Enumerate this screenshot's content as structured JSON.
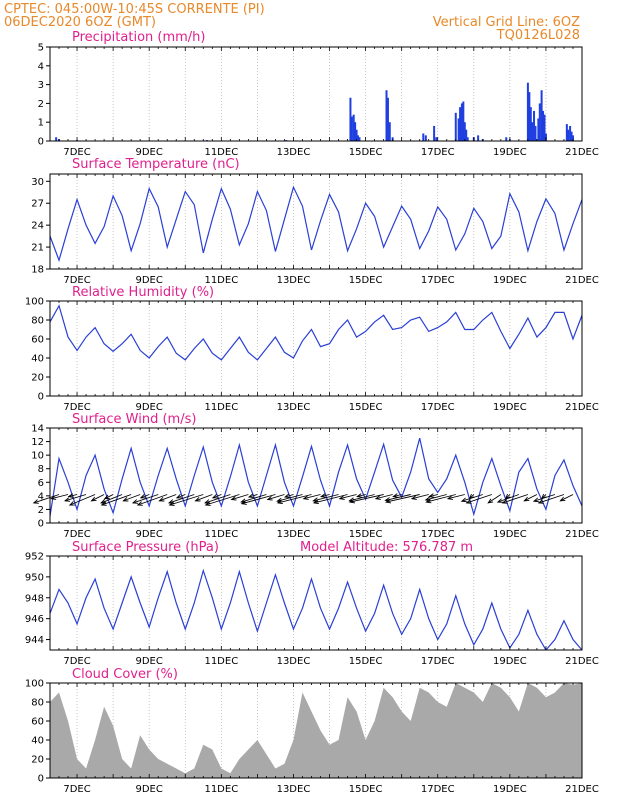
{
  "header": {
    "line1_left": "CPTEC:  045:00W-10:45S  CORRENTE (PI)",
    "line2_left": "06DEC2020 6OZ (GMT)",
    "line1_right": "Vertical Grid Line: 6OZ",
    "line2_right": "TQ0126L028"
  },
  "colors": {
    "header": "#e8892a",
    "title": "#e0208c",
    "line": "#2a3fd6",
    "bar": "#1f3fe0",
    "cloud": "#a9a9a9",
    "grid": "#b0b0b0"
  },
  "x_axis": {
    "labels": [
      "7DEC",
      "9DEC",
      "11DEC",
      "13DEC",
      "15DEC",
      "17DEC",
      "19DEC",
      "21DEC"
    ],
    "day_start": 6.25,
    "day_end": 21.0,
    "label_days": [
      7,
      9,
      11,
      13,
      15,
      17,
      19,
      21
    ]
  },
  "chart_data": [
    {
      "type": "bar",
      "title": "Precipitation (mm/h)",
      "ylim": [
        0,
        5
      ],
      "yticks": [
        0,
        1,
        2,
        3,
        4,
        5
      ],
      "x_days": [
        6.42,
        6.5,
        7.0,
        10.6,
        12.8,
        14.58,
        14.62,
        14.67,
        14.71,
        14.75,
        14.79,
        14.83,
        15.58,
        15.62,
        15.67,
        15.75,
        16.6,
        16.67,
        16.9,
        16.96,
        17.5,
        17.58,
        17.62,
        17.67,
        17.71,
        17.75,
        17.79,
        17.83,
        18.0,
        18.12,
        18.25,
        18.9,
        19.0,
        19.5,
        19.54,
        19.58,
        19.62,
        19.67,
        19.71,
        19.79,
        19.83,
        19.88,
        19.92,
        19.96,
        20.0,
        20.58,
        20.62,
        20.67,
        20.71,
        20.75
      ],
      "values": [
        0.2,
        0.1,
        0.05,
        0.05,
        0.05,
        2.3,
        1.3,
        1.4,
        1.0,
        0.6,
        0.3,
        0.2,
        2.7,
        2.3,
        1.0,
        0.2,
        0.4,
        0.3,
        0.8,
        0.2,
        1.5,
        1.2,
        1.8,
        2.0,
        2.1,
        1.0,
        0.6,
        0.2,
        0.2,
        0.3,
        0.1,
        0.2,
        0.1,
        3.1,
        2.6,
        1.8,
        1.0,
        1.6,
        0.8,
        1.2,
        2.0,
        2.7,
        1.6,
        1.4,
        0.4,
        0.9,
        0.6,
        0.8,
        0.5,
        0.3
      ]
    },
    {
      "type": "line",
      "title": "Surface Temperature (nC)",
      "ylim": [
        18,
        31
      ],
      "yticks": [
        18,
        21,
        24,
        27,
        30
      ],
      "series": [
        {
          "x": [
            6.25,
            6.5,
            6.75,
            7.0,
            7.25,
            7.5,
            7.75,
            8.0,
            8.25,
            8.5,
            8.75,
            9.0,
            9.25,
            9.5,
            9.75,
            10.0,
            10.25,
            10.5,
            10.75,
            11.0,
            11.25,
            11.5,
            11.75,
            12.0,
            12.25,
            12.5,
            12.75,
            13.0,
            13.25,
            13.5,
            13.75,
            14.0,
            14.25,
            14.5,
            14.75,
            15.0,
            15.25,
            15.5,
            15.75,
            16.0,
            16.25,
            16.5,
            16.75,
            17.0,
            17.25,
            17.5,
            17.75,
            18.0,
            18.25,
            18.5,
            18.75,
            19.0,
            19.25,
            19.5,
            19.75,
            20.0,
            20.25,
            20.5,
            20.75,
            21.0
          ],
          "values": [
            22.5,
            19.2,
            23.5,
            27.5,
            24.0,
            21.5,
            23.8,
            28.0,
            25.3,
            20.5,
            24.2,
            29.0,
            26.5,
            21.0,
            24.8,
            28.6,
            26.8,
            20.2,
            24.8,
            29.0,
            26.2,
            21.3,
            24.2,
            28.6,
            26.0,
            20.4,
            24.8,
            29.2,
            26.6,
            20.6,
            24.6,
            28.2,
            25.8,
            20.5,
            23.5,
            27.0,
            25.2,
            21.0,
            23.8,
            26.6,
            24.8,
            20.8,
            23.2,
            26.5,
            24.8,
            20.6,
            22.8,
            26.3,
            24.5,
            20.8,
            22.5,
            28.3,
            25.8,
            20.5,
            24.5,
            27.6,
            25.6,
            20.6,
            24.2,
            27.5
          ]
        }
      ]
    },
    {
      "type": "line",
      "title": "Relative Humidity (%)",
      "ylim": [
        0,
        100
      ],
      "yticks": [
        0,
        20,
        40,
        60,
        80,
        100
      ],
      "series": [
        {
          "x": [
            6.25,
            6.5,
            6.75,
            7.0,
            7.25,
            7.5,
            7.75,
            8.0,
            8.25,
            8.5,
            8.75,
            9.0,
            9.25,
            9.5,
            9.75,
            10.0,
            10.25,
            10.5,
            10.75,
            11.0,
            11.25,
            11.5,
            11.75,
            12.0,
            12.25,
            12.5,
            12.75,
            13.0,
            13.25,
            13.5,
            13.75,
            14.0,
            14.25,
            14.5,
            14.75,
            15.0,
            15.25,
            15.5,
            15.75,
            16.0,
            16.25,
            16.5,
            16.75,
            17.0,
            17.25,
            17.5,
            17.75,
            18.0,
            18.25,
            18.5,
            18.75,
            19.0,
            19.25,
            19.5,
            19.75,
            20.0,
            20.25,
            20.5,
            20.75,
            21.0
          ],
          "values": [
            78,
            95,
            62,
            48,
            62,
            72,
            55,
            47,
            55,
            65,
            48,
            40,
            52,
            62,
            45,
            38,
            50,
            60,
            45,
            38,
            50,
            62,
            46,
            38,
            50,
            62,
            46,
            40,
            58,
            70,
            52,
            55,
            70,
            80,
            62,
            68,
            78,
            85,
            70,
            72,
            80,
            83,
            68,
            72,
            78,
            88,
            70,
            70,
            80,
            88,
            68,
            50,
            65,
            82,
            62,
            72,
            88,
            88,
            60,
            85
          ]
        }
      ]
    },
    {
      "type": "line",
      "title": "Surface Wind (m/s)",
      "ylim": [
        0,
        14
      ],
      "yticks": [
        0,
        2,
        4,
        6,
        8,
        10,
        12,
        14
      ],
      "series": [
        {
          "x": [
            6.25,
            6.5,
            6.75,
            7.0,
            7.25,
            7.5,
            7.75,
            8.0,
            8.25,
            8.5,
            8.75,
            9.0,
            9.25,
            9.5,
            9.75,
            10.0,
            10.25,
            10.5,
            10.75,
            11.0,
            11.25,
            11.5,
            11.75,
            12.0,
            12.25,
            12.5,
            12.75,
            13.0,
            13.25,
            13.5,
            13.75,
            14.0,
            14.25,
            14.5,
            14.75,
            15.0,
            15.25,
            15.5,
            15.75,
            16.0,
            16.25,
            16.5,
            16.75,
            17.0,
            17.25,
            17.5,
            17.75,
            18.0,
            18.25,
            18.5,
            18.75,
            19.0,
            19.25,
            19.5,
            19.75,
            20.0,
            20.25,
            20.5,
            20.75,
            21.0
          ],
          "values": [
            1.0,
            9.5,
            6.0,
            2.0,
            7.0,
            10.0,
            5.0,
            1.5,
            6.5,
            11.0,
            6.0,
            2.5,
            7.0,
            11.0,
            6.5,
            2.5,
            7.0,
            11.2,
            6.0,
            2.5,
            6.8,
            11.5,
            6.0,
            2.5,
            7.0,
            11.5,
            6.0,
            2.5,
            6.8,
            11.3,
            6.3,
            2.5,
            7.5,
            11.5,
            6.5,
            3.5,
            7.5,
            11.6,
            6.3,
            3.8,
            7.5,
            12.5,
            6.5,
            4.5,
            6.5,
            10.0,
            6.0,
            1.3,
            6.0,
            9.5,
            5.5,
            1.8,
            7.5,
            9.5,
            5.0,
            2.0,
            7.0,
            9.3,
            5.5,
            2.5
          ]
        }
      ],
      "wind_vectors": {
        "x": [
          6.5,
          6.75,
          7.0,
          7.25,
          7.5,
          7.75,
          8.0,
          8.25,
          8.5,
          8.75,
          9.0,
          9.25,
          9.5,
          9.75,
          10.0,
          10.25,
          10.5,
          10.75,
          11.0,
          11.25,
          11.5,
          11.75,
          12.0,
          12.25,
          12.5,
          12.75,
          13.0,
          13.25,
          13.5,
          13.75,
          14.0,
          14.25,
          14.5,
          14.75,
          15.0,
          15.25,
          15.5,
          15.75,
          16.0,
          16.25,
          16.5,
          16.75,
          17.0,
          17.25,
          17.5,
          17.75,
          18.0,
          18.25,
          18.5,
          18.75,
          19.0,
          19.25,
          19.5,
          19.75,
          20.0,
          20.25,
          20.5,
          20.75
        ],
        "u": [
          -6,
          -4,
          -2,
          -5,
          -6,
          -3,
          -2,
          -5,
          -7,
          -4,
          -2,
          -6,
          -7,
          -4,
          -2,
          -6,
          -8,
          -4,
          -2,
          -6,
          -8,
          -4,
          -2,
          -6,
          -8,
          -4,
          -2,
          -6,
          -8,
          -4,
          -2,
          -6,
          -8,
          -4,
          -2,
          -6,
          -8,
          -4,
          -2,
          -6,
          -8,
          -4,
          -2,
          -5,
          -7,
          -4,
          -1,
          -5,
          -6,
          -3,
          -1,
          -5,
          -6,
          -3,
          -1,
          -5,
          -6,
          -3
        ],
        "v": [
          -2,
          -1,
          -0.5,
          -1.5,
          -2.5,
          -1.5,
          -1,
          -2,
          -2.5,
          -1.5,
          -0.8,
          -2,
          -2.5,
          -1.5,
          -0.8,
          -2,
          -2.5,
          -1.5,
          -0.8,
          -2,
          -2.5,
          -1.2,
          -0.6,
          -1.8,
          -2.2,
          -1.2,
          -0.6,
          -1.6,
          -2,
          -1,
          -0.5,
          -1.5,
          -2,
          -1,
          -0.5,
          -1.5,
          -1.8,
          -1,
          -0.5,
          -1.4,
          -1.8,
          -1,
          -0.5,
          -1.3,
          -1.8,
          -1,
          -1,
          -1.6,
          -2,
          -2,
          -1,
          -1.8,
          -2,
          -1.5,
          -1,
          -1.6,
          -2,
          -1.5
        ]
      }
    },
    {
      "type": "line",
      "title": "Surface Pressure (hPa)",
      "annotation": "Model Altitude: 576.787  m",
      "ylim": [
        943,
        952
      ],
      "yticks": [
        944,
        946,
        948,
        950,
        952
      ],
      "series": [
        {
          "x": [
            6.25,
            6.5,
            6.75,
            7.0,
            7.25,
            7.5,
            7.75,
            8.0,
            8.25,
            8.5,
            8.75,
            9.0,
            9.25,
            9.5,
            9.75,
            10.0,
            10.25,
            10.5,
            10.75,
            11.0,
            11.25,
            11.5,
            11.75,
            12.0,
            12.25,
            12.5,
            12.75,
            13.0,
            13.25,
            13.5,
            13.75,
            14.0,
            14.25,
            14.5,
            14.75,
            15.0,
            15.25,
            15.5,
            15.75,
            16.0,
            16.25,
            16.5,
            16.75,
            17.0,
            17.25,
            17.5,
            17.75,
            18.0,
            18.25,
            18.5,
            18.75,
            19.0,
            19.25,
            19.5,
            19.75,
            20.0,
            20.25,
            20.5,
            20.75,
            21.0
          ],
          "values": [
            946.5,
            948.8,
            947.5,
            945.5,
            948.0,
            949.8,
            947.0,
            945.0,
            947.5,
            950.0,
            947.5,
            945.2,
            948.0,
            950.5,
            947.5,
            945.0,
            947.5,
            950.6,
            948.0,
            945.0,
            947.5,
            950.5,
            947.5,
            944.8,
            947.5,
            950.2,
            947.5,
            945.0,
            947.0,
            949.8,
            947.0,
            945.0,
            947.0,
            949.5,
            947.0,
            944.8,
            946.5,
            949.2,
            946.5,
            944.5,
            946.0,
            948.8,
            946.0,
            944.0,
            945.5,
            948.2,
            945.5,
            943.5,
            945.0,
            947.5,
            945.0,
            943.2,
            944.5,
            946.8,
            944.5,
            943.0,
            944.0,
            945.8,
            944.0,
            943.0
          ]
        }
      ]
    },
    {
      "type": "area",
      "title": "Cloud Cover (%)",
      "ylim": [
        0,
        100
      ],
      "yticks": [
        0,
        20,
        40,
        60,
        80,
        100
      ],
      "series": [
        {
          "x": [
            6.25,
            6.5,
            6.75,
            7.0,
            7.25,
            7.5,
            7.75,
            8.0,
            8.25,
            8.5,
            8.75,
            9.0,
            9.25,
            9.5,
            9.75,
            10.0,
            10.25,
            10.5,
            10.75,
            11.0,
            11.25,
            11.5,
            11.75,
            12.0,
            12.25,
            12.5,
            12.75,
            13.0,
            13.25,
            13.5,
            13.75,
            14.0,
            14.25,
            14.5,
            14.75,
            15.0,
            15.25,
            15.5,
            15.75,
            16.0,
            16.25,
            16.5,
            16.75,
            17.0,
            17.25,
            17.5,
            17.75,
            18.0,
            18.25,
            18.5,
            18.75,
            19.0,
            19.25,
            19.5,
            19.75,
            20.0,
            20.25,
            20.5,
            20.75,
            21.0
          ],
          "values": [
            80,
            90,
            60,
            20,
            10,
            40,
            75,
            55,
            20,
            10,
            45,
            30,
            20,
            15,
            10,
            5,
            10,
            35,
            30,
            10,
            5,
            20,
            30,
            40,
            25,
            10,
            15,
            40,
            90,
            70,
            50,
            35,
            40,
            85,
            70,
            40,
            60,
            95,
            85,
            70,
            60,
            95,
            90,
            80,
            75,
            100,
            95,
            90,
            80,
            100,
            95,
            85,
            70,
            100,
            95,
            85,
            90,
            100,
            98,
            100
          ]
        }
      ]
    }
  ]
}
